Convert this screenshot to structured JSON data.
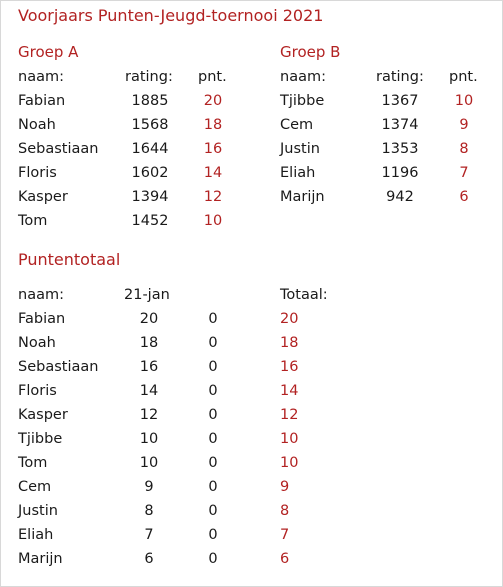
{
  "title": "Voorjaars Punten-Jeugd-toernooi 2021",
  "colors": {
    "accent": "#b22222",
    "text": "#1a1a1a"
  },
  "groupA": {
    "title": "Groep A",
    "headers": {
      "name": "naam:",
      "rating": "rating:",
      "points": "pnt."
    },
    "rows": [
      {
        "name": "Fabian",
        "rating": "1885",
        "points": "20"
      },
      {
        "name": "Noah",
        "rating": "1568",
        "points": "18"
      },
      {
        "name": "Sebastiaan",
        "rating": "1644",
        "points": "16"
      },
      {
        "name": "Floris",
        "rating": "1602",
        "points": "14"
      },
      {
        "name": "Kasper",
        "rating": "1394",
        "points": "12"
      },
      {
        "name": "Tom",
        "rating": "1452",
        "points": "10"
      }
    ]
  },
  "groupB": {
    "title": "Groep B",
    "headers": {
      "name": "naam:",
      "rating": "rating:",
      "points": "pnt."
    },
    "rows": [
      {
        "name": "Tjibbe",
        "rating": "1367",
        "points": "10"
      },
      {
        "name": "Cem",
        "rating": "1374",
        "points": "9"
      },
      {
        "name": "Justin",
        "rating": "1353",
        "points": "8"
      },
      {
        "name": "Eliah",
        "rating": "1196",
        "points": "7"
      },
      {
        "name": "Marijn",
        "rating": "942",
        "points": "6"
      }
    ]
  },
  "totals": {
    "title": "Puntentotaal",
    "headers": {
      "name": "naam:",
      "round1": "21-jan",
      "total": "Totaal:"
    },
    "rows": [
      {
        "name": "Fabian",
        "round1": "20",
        "round2": "0",
        "total": "20"
      },
      {
        "name": "Noah",
        "round1": "18",
        "round2": "0",
        "total": "18"
      },
      {
        "name": "Sebastiaan",
        "round1": "16",
        "round2": "0",
        "total": "16"
      },
      {
        "name": "Floris",
        "round1": "14",
        "round2": "0",
        "total": "14"
      },
      {
        "name": "Kasper",
        "round1": "12",
        "round2": "0",
        "total": "12"
      },
      {
        "name": "Tjibbe",
        "round1": "10",
        "round2": "0",
        "total": "10"
      },
      {
        "name": "Tom",
        "round1": "10",
        "round2": "0",
        "total": "10"
      },
      {
        "name": "Cem",
        "round1": "9",
        "round2": "0",
        "total": "9"
      },
      {
        "name": "Justin",
        "round1": "8",
        "round2": "0",
        "total": "8"
      },
      {
        "name": "Eliah",
        "round1": "7",
        "round2": "0",
        "total": "7"
      },
      {
        "name": "Marijn",
        "round1": "6",
        "round2": "0",
        "total": "6"
      }
    ]
  }
}
